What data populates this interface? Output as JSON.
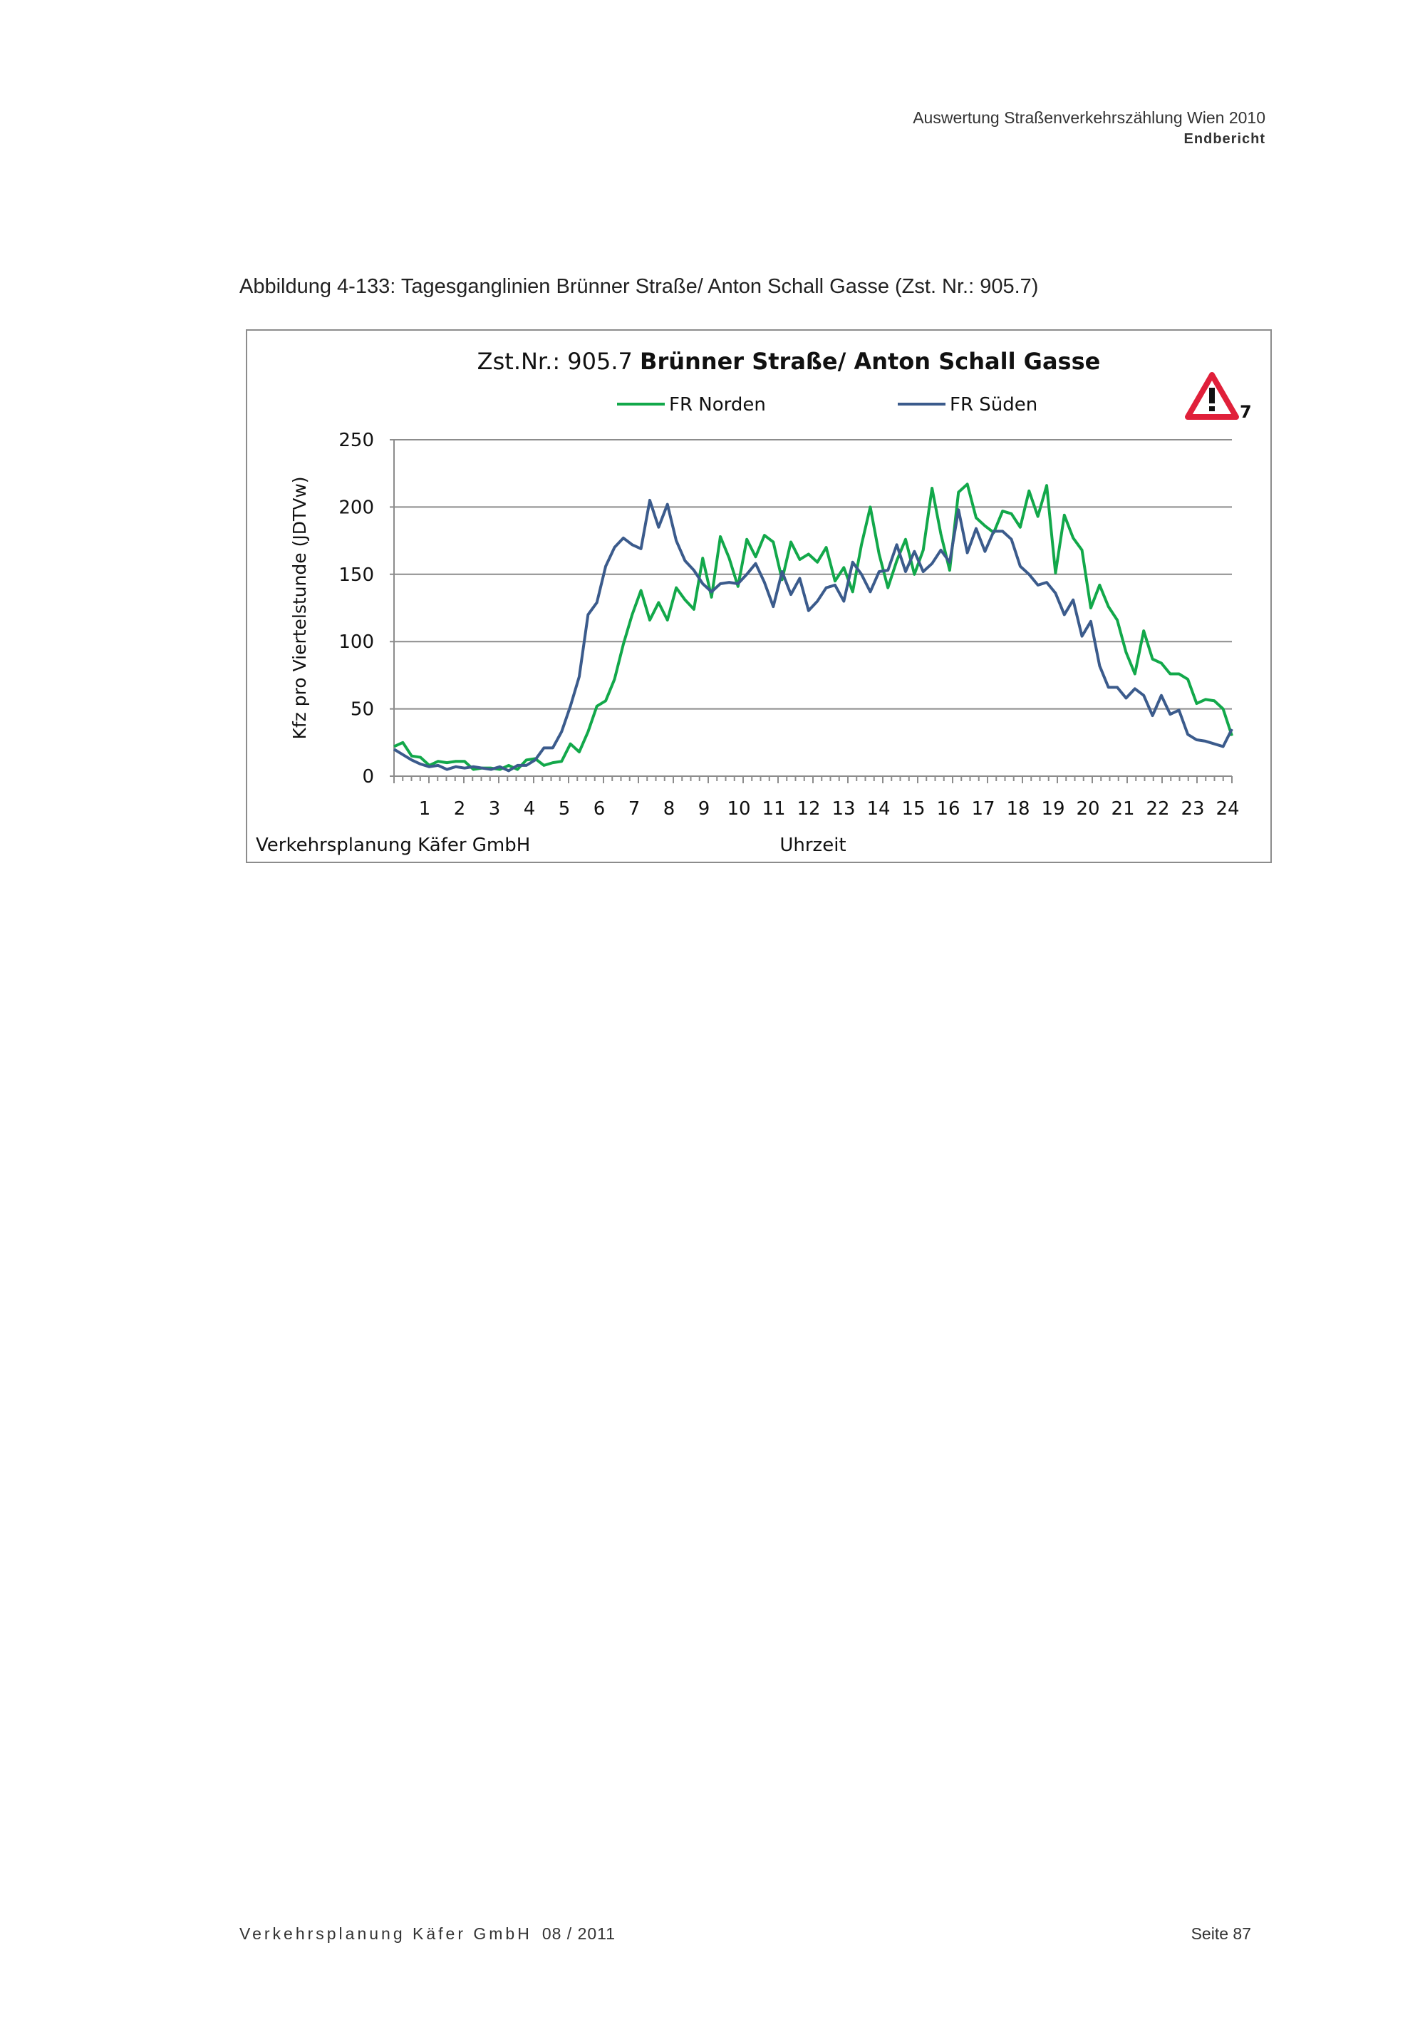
{
  "header": {
    "title": "Auswertung Straßenverkehrszählung Wien 2010",
    "subtitle": "Endbericht"
  },
  "caption": "Abbildung 4-133:  Tagesganglinien Brünner Straße/ Anton Schall Gasse (Zst. Nr.: 905.7)",
  "footer": {
    "company": "Verkehrsplanung Käfer GmbH",
    "date": "08 / 2011",
    "page": "Seite 87"
  },
  "colors": {
    "green": "#12a84a",
    "blue": "#3b5b8c",
    "grid": "#8c8c8c",
    "warning": "#e0203a"
  },
  "chart_data": {
    "type": "line",
    "title_prefix": "Zst.Nr.: 905.7 ",
    "title_bold": "Brünner Straße/ Anton Schall Gasse",
    "xlabel": "Uhrzeit",
    "ylabel": "Kfz pro Viertelstunde (JDTVw)",
    "source_note": "Verkehrsplanung Käfer GmbH",
    "warning_badge": "7",
    "xlim": [
      0,
      24
    ],
    "ylim": [
      0,
      250
    ],
    "yticks": [
      "0",
      "50",
      "100",
      "150",
      "200",
      "250"
    ],
    "xticks": [
      "1",
      "2",
      "3",
      "4",
      "5",
      "6",
      "7",
      "8",
      "9",
      "10",
      "11",
      "12",
      "13",
      "14",
      "15",
      "16",
      "17",
      "18",
      "19",
      "20",
      "21",
      "22",
      "23",
      "24"
    ],
    "grid": true,
    "legend_position": "top",
    "interval": "15 min",
    "series": [
      {
        "name": "FR Norden",
        "color": "#12a84a",
        "values": [
          22,
          25,
          15,
          14,
          8,
          11,
          10,
          11,
          11,
          5,
          6,
          6,
          5,
          8,
          5,
          12,
          13,
          8,
          10,
          11,
          24,
          18,
          33,
          52,
          56,
          72,
          98,
          120,
          138,
          116,
          129,
          116,
          140,
          131,
          124,
          162,
          133,
          178,
          162,
          141,
          176,
          163,
          179,
          174,
          146,
          174,
          161,
          165,
          159,
          170,
          145,
          155,
          137,
          172,
          200,
          165,
          140,
          160,
          176,
          150,
          168,
          214,
          180,
          153,
          211,
          217,
          192,
          186,
          181,
          197,
          195,
          185,
          212,
          193,
          216,
          151,
          194,
          177,
          168,
          125,
          142,
          126,
          116,
          92,
          76,
          108,
          87,
          84,
          76,
          76,
          72,
          54,
          57,
          56,
          50,
          30
        ]
      },
      {
        "name": "FR Süden",
        "color": "#3b5b8c",
        "values": [
          20,
          16,
          12,
          9,
          7,
          8,
          5,
          7,
          6,
          7,
          6,
          5,
          7,
          4,
          8,
          8,
          12,
          21,
          21,
          33,
          52,
          74,
          120,
          129,
          156,
          170,
          177,
          172,
          169,
          205,
          185,
          202,
          175,
          160,
          153,
          143,
          137,
          143,
          144,
          143,
          150,
          158,
          144,
          126,
          152,
          135,
          147,
          123,
          130,
          140,
          142,
          130,
          159,
          150,
          137,
          152,
          153,
          172,
          152,
          167,
          152,
          158,
          168,
          159,
          198,
          166,
          184,
          167,
          182,
          182,
          176,
          156,
          150,
          142,
          144,
          136,
          120,
          131,
          104,
          115,
          82,
          66,
          66,
          58,
          65,
          60,
          45,
          60,
          46,
          49,
          31,
          27,
          26,
          24,
          22,
          35
        ]
      }
    ]
  }
}
